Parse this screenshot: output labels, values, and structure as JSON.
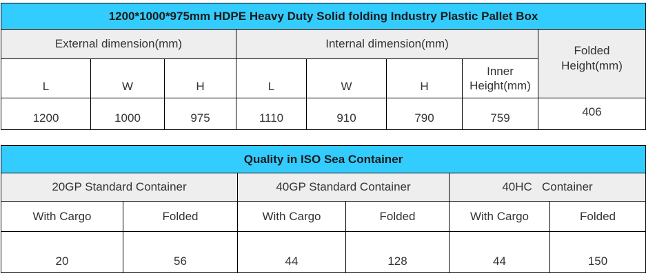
{
  "spec_table": {
    "title": "1200*1000*975mm HDPE Heavy Duty Solid folding Industry Plastic Pallet Box",
    "external_header": "External dimension(mm)",
    "internal_header": "Internal dimension(mm)",
    "folded_header_line1": "Folded",
    "folded_header_line2": "Height(mm)",
    "ext_cols": [
      "L",
      "W",
      "H"
    ],
    "int_cols": [
      "L",
      "W",
      "H"
    ],
    "inner_height_line1": "Inner",
    "inner_height_line2": "Height(mm)",
    "values": {
      "ext_l": "1200",
      "ext_w": "1000",
      "ext_h": "975",
      "int_l": "1110",
      "int_w": "910",
      "int_h": "790",
      "inner_height": "759",
      "folded_height": "406"
    }
  },
  "container_table": {
    "title": "Quality in ISO Sea Container",
    "groups": [
      "20GP Standard Container",
      "40GP Standard Container",
      "40HC   Container"
    ],
    "sub_cols": [
      "With Cargo",
      "Folded",
      "With Cargo",
      "Folded",
      "With Cargo",
      "Folded"
    ],
    "values": [
      "20",
      "56",
      "44",
      "128",
      "44",
      "150"
    ]
  },
  "colors": {
    "title_bg": "#33ccff",
    "header_bg": "#eeeeee"
  }
}
